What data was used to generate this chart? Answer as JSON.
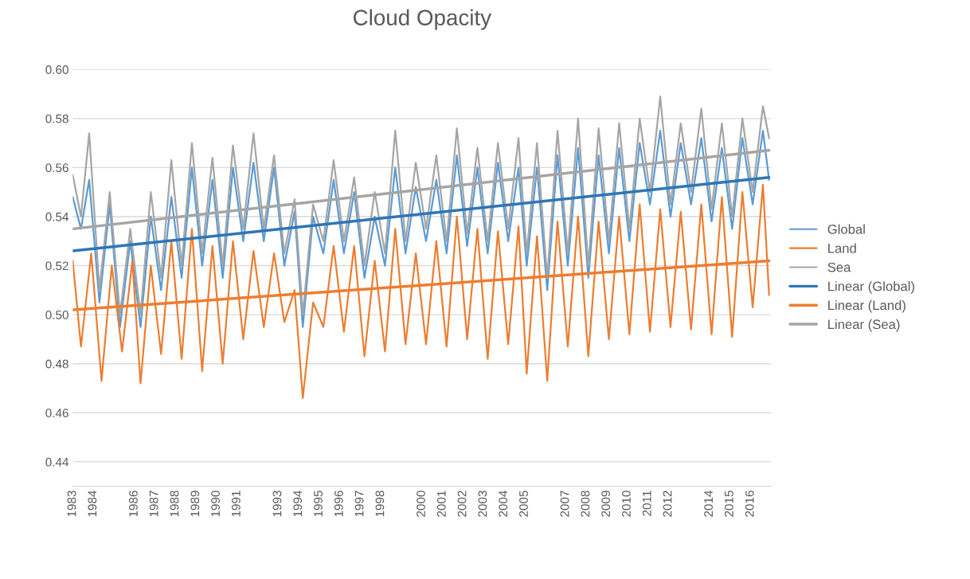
{
  "chart_data": {
    "type": "line",
    "title": "Cloud Opacity",
    "xlim": [
      1983,
      2017
    ],
    "xticks": [
      1983,
      1984,
      1986,
      1987,
      1988,
      1989,
      1990,
      1991,
      1993,
      1994,
      1995,
      1996,
      1997,
      1998,
      2000,
      2001,
      2002,
      2003,
      2004,
      2005,
      2007,
      2008,
      2009,
      2010,
      2011,
      2012,
      2014,
      2015,
      2016
    ],
    "ylim": [
      0.43,
      0.6
    ],
    "yticks": [
      {
        "value": 0.44,
        "label": "0.44"
      },
      {
        "value": 0.46,
        "label": "0.46"
      },
      {
        "value": 0.48,
        "label": "0.48"
      },
      {
        "value": 0.5,
        "label": "0.50"
      },
      {
        "value": 0.52,
        "label": "0.52"
      },
      {
        "value": 0.54,
        "label": "0.54"
      },
      {
        "value": 0.56,
        "label": "0.56"
      },
      {
        "value": 0.58,
        "label": "0.58"
      },
      {
        "value": 0.6,
        "label": "0.60"
      }
    ],
    "grid": "y",
    "legend": "right",
    "series": [
      {
        "name": "Global",
        "color": "#5b9bd5",
        "x": [
          1983.0,
          1983.4,
          1983.8,
          1984.3,
          1984.8,
          1985.3,
          1985.8,
          1986.3,
          1986.8,
          1987.3,
          1987.8,
          1988.3,
          1988.8,
          1989.3,
          1989.8,
          1990.3,
          1990.8,
          1991.3,
          1991.8,
          1992.3,
          1992.8,
          1993.3,
          1993.8,
          1994.2,
          1994.7,
          1995.2,
          1995.7,
          1996.2,
          1996.7,
          1997.2,
          1997.7,
          1998.2,
          1998.7,
          1999.2,
          1999.7,
          2000.2,
          2000.7,
          2001.2,
          2001.7,
          2002.2,
          2002.7,
          2003.2,
          2003.7,
          2004.2,
          2004.7,
          2005.1,
          2005.6,
          2006.1,
          2006.6,
          2007.1,
          2007.6,
          2008.1,
          2008.6,
          2009.1,
          2009.6,
          2010.1,
          2010.6,
          2011.1,
          2011.6,
          2012.1,
          2012.6,
          2013.1,
          2013.6,
          2014.1,
          2014.6,
          2015.1,
          2015.6,
          2016.1,
          2016.6,
          2016.9
        ],
        "values": [
          0.548,
          0.535,
          0.555,
          0.505,
          0.545,
          0.495,
          0.53,
          0.495,
          0.54,
          0.51,
          0.548,
          0.515,
          0.56,
          0.52,
          0.555,
          0.515,
          0.56,
          0.53,
          0.562,
          0.53,
          0.56,
          0.52,
          0.542,
          0.495,
          0.54,
          0.525,
          0.555,
          0.525,
          0.55,
          0.515,
          0.54,
          0.52,
          0.56,
          0.525,
          0.552,
          0.53,
          0.555,
          0.525,
          0.565,
          0.528,
          0.56,
          0.525,
          0.562,
          0.53,
          0.56,
          0.52,
          0.56,
          0.51,
          0.565,
          0.52,
          0.568,
          0.515,
          0.565,
          0.525,
          0.568,
          0.53,
          0.57,
          0.545,
          0.575,
          0.54,
          0.57,
          0.545,
          0.572,
          0.538,
          0.568,
          0.535,
          0.572,
          0.545,
          0.575,
          0.555
        ]
      },
      {
        "name": "Land",
        "color": "#ed7d31",
        "x": [
          1983.0,
          1983.4,
          1983.9,
          1984.4,
          1984.9,
          1985.4,
          1985.9,
          1986.3,
          1986.8,
          1987.3,
          1987.8,
          1988.3,
          1988.8,
          1989.3,
          1989.8,
          1990.3,
          1990.8,
          1991.3,
          1991.8,
          1992.3,
          1992.8,
          1993.3,
          1993.8,
          1994.2,
          1994.7,
          1995.2,
          1995.7,
          1996.2,
          1996.7,
          1997.2,
          1997.7,
          1998.2,
          1998.7,
          1999.2,
          1999.7,
          2000.2,
          2000.7,
          2001.2,
          2001.7,
          2002.2,
          2002.7,
          2003.2,
          2003.7,
          2004.2,
          2004.7,
          2005.1,
          2005.6,
          2006.1,
          2006.6,
          2007.1,
          2007.6,
          2008.1,
          2008.6,
          2009.1,
          2009.6,
          2010.1,
          2010.6,
          2011.1,
          2011.6,
          2012.1,
          2012.6,
          2013.1,
          2013.6,
          2014.1,
          2014.6,
          2015.1,
          2015.6,
          2016.1,
          2016.6,
          2016.9
        ],
        "values": [
          0.522,
          0.487,
          0.525,
          0.473,
          0.52,
          0.485,
          0.522,
          0.472,
          0.52,
          0.484,
          0.53,
          0.482,
          0.535,
          0.477,
          0.528,
          0.48,
          0.53,
          0.49,
          0.526,
          0.495,
          0.525,
          0.497,
          0.51,
          0.466,
          0.505,
          0.495,
          0.528,
          0.493,
          0.528,
          0.483,
          0.522,
          0.485,
          0.535,
          0.488,
          0.525,
          0.488,
          0.53,
          0.487,
          0.54,
          0.49,
          0.535,
          0.482,
          0.534,
          0.488,
          0.536,
          0.476,
          0.532,
          0.473,
          0.538,
          0.487,
          0.54,
          0.483,
          0.538,
          0.49,
          0.54,
          0.492,
          0.545,
          0.493,
          0.543,
          0.495,
          0.542,
          0.494,
          0.545,
          0.492,
          0.548,
          0.491,
          0.55,
          0.503,
          0.553,
          0.508
        ]
      },
      {
        "name": "Sea",
        "color": "#a5a5a5",
        "x": [
          1983.0,
          1983.4,
          1983.8,
          1984.3,
          1984.8,
          1985.3,
          1985.8,
          1986.3,
          1986.8,
          1987.3,
          1987.8,
          1988.3,
          1988.8,
          1989.3,
          1989.8,
          1990.3,
          1990.8,
          1991.3,
          1991.8,
          1992.3,
          1992.8,
          1993.3,
          1993.8,
          1994.2,
          1994.7,
          1995.2,
          1995.7,
          1996.2,
          1996.7,
          1997.2,
          1997.7,
          1998.2,
          1998.7,
          1999.2,
          1999.7,
          2000.2,
          2000.7,
          2001.2,
          2001.7,
          2002.2,
          2002.7,
          2003.2,
          2003.7,
          2004.2,
          2004.7,
          2005.1,
          2005.6,
          2006.1,
          2006.6,
          2007.1,
          2007.6,
          2008.1,
          2008.6,
          2009.1,
          2009.6,
          2010.1,
          2010.6,
          2011.1,
          2011.6,
          2012.1,
          2012.6,
          2013.1,
          2013.6,
          2014.1,
          2014.6,
          2015.1,
          2015.6,
          2016.1,
          2016.6,
          2016.9
        ],
        "values": [
          0.557,
          0.54,
          0.574,
          0.51,
          0.55,
          0.5,
          0.535,
          0.5,
          0.55,
          0.515,
          0.563,
          0.52,
          0.57,
          0.525,
          0.564,
          0.52,
          0.569,
          0.535,
          0.574,
          0.535,
          0.565,
          0.525,
          0.547,
          0.5,
          0.545,
          0.53,
          0.563,
          0.53,
          0.556,
          0.52,
          0.55,
          0.525,
          0.575,
          0.53,
          0.562,
          0.535,
          0.565,
          0.53,
          0.576,
          0.533,
          0.568,
          0.53,
          0.57,
          0.535,
          0.572,
          0.525,
          0.57,
          0.515,
          0.575,
          0.525,
          0.58,
          0.52,
          0.576,
          0.53,
          0.578,
          0.535,
          0.58,
          0.55,
          0.589,
          0.545,
          0.578,
          0.55,
          0.584,
          0.543,
          0.578,
          0.54,
          0.58,
          0.55,
          0.585,
          0.572
        ]
      },
      {
        "name": "Linear (Global)",
        "color": "#2e75b6",
        "x": [
          1983.0,
          2016.9
        ],
        "values": [
          0.526,
          0.556
        ]
      },
      {
        "name": "Linear (Land)",
        "color": "#ed7d31",
        "x": [
          1983.0,
          2016.9
        ],
        "values": [
          0.502,
          0.522
        ]
      },
      {
        "name": "Linear (Sea)",
        "color": "#a5a5a5",
        "x": [
          1983.0,
          2016.9
        ],
        "values": [
          0.535,
          0.567
        ]
      }
    ]
  }
}
